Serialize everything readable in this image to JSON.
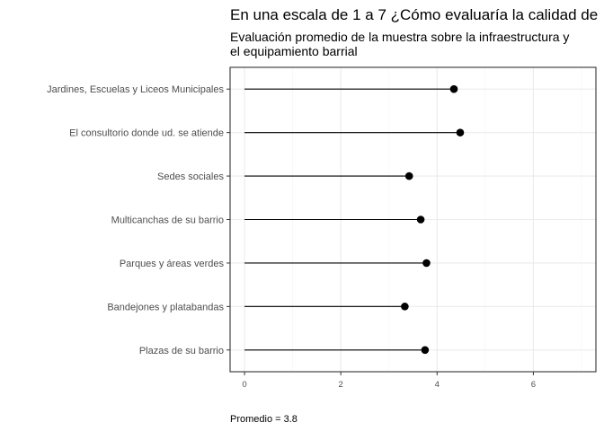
{
  "chart_data": {
    "type": "lollipop",
    "title": "En una escala de 1 a 7 ¿Cómo evaluaría la calidad de",
    "subtitle_lines": [
      "Evaluación promedio de la muestra sobre la infraestructura y",
      "el equipamiento barrial"
    ],
    "xlabel": "",
    "ylabel": "",
    "xlim": [
      -0.3,
      7.3
    ],
    "xticks": [
      0,
      2,
      4,
      6
    ],
    "grid": true,
    "categories": [
      "Jardines, Escuelas y Liceos Municipales",
      "El consultorio donde ud. se atiende",
      "Sedes sociales",
      "Multicanchas de su barrio",
      "Parques  y  áreas  verdes",
      "Bandejones y platabandas",
      "Plazas de su barrio"
    ],
    "values": [
      4.35,
      4.48,
      3.42,
      3.66,
      3.78,
      3.33,
      3.75
    ],
    "caption": "Promedio =  3.8",
    "colors": {
      "point": "#000000",
      "segment": "#000000",
      "grid_major": "#ebebeb",
      "grid_minor": "#f5f5f5",
      "panel_border": "#333333",
      "tick_text": "#4d4d4d"
    }
  }
}
